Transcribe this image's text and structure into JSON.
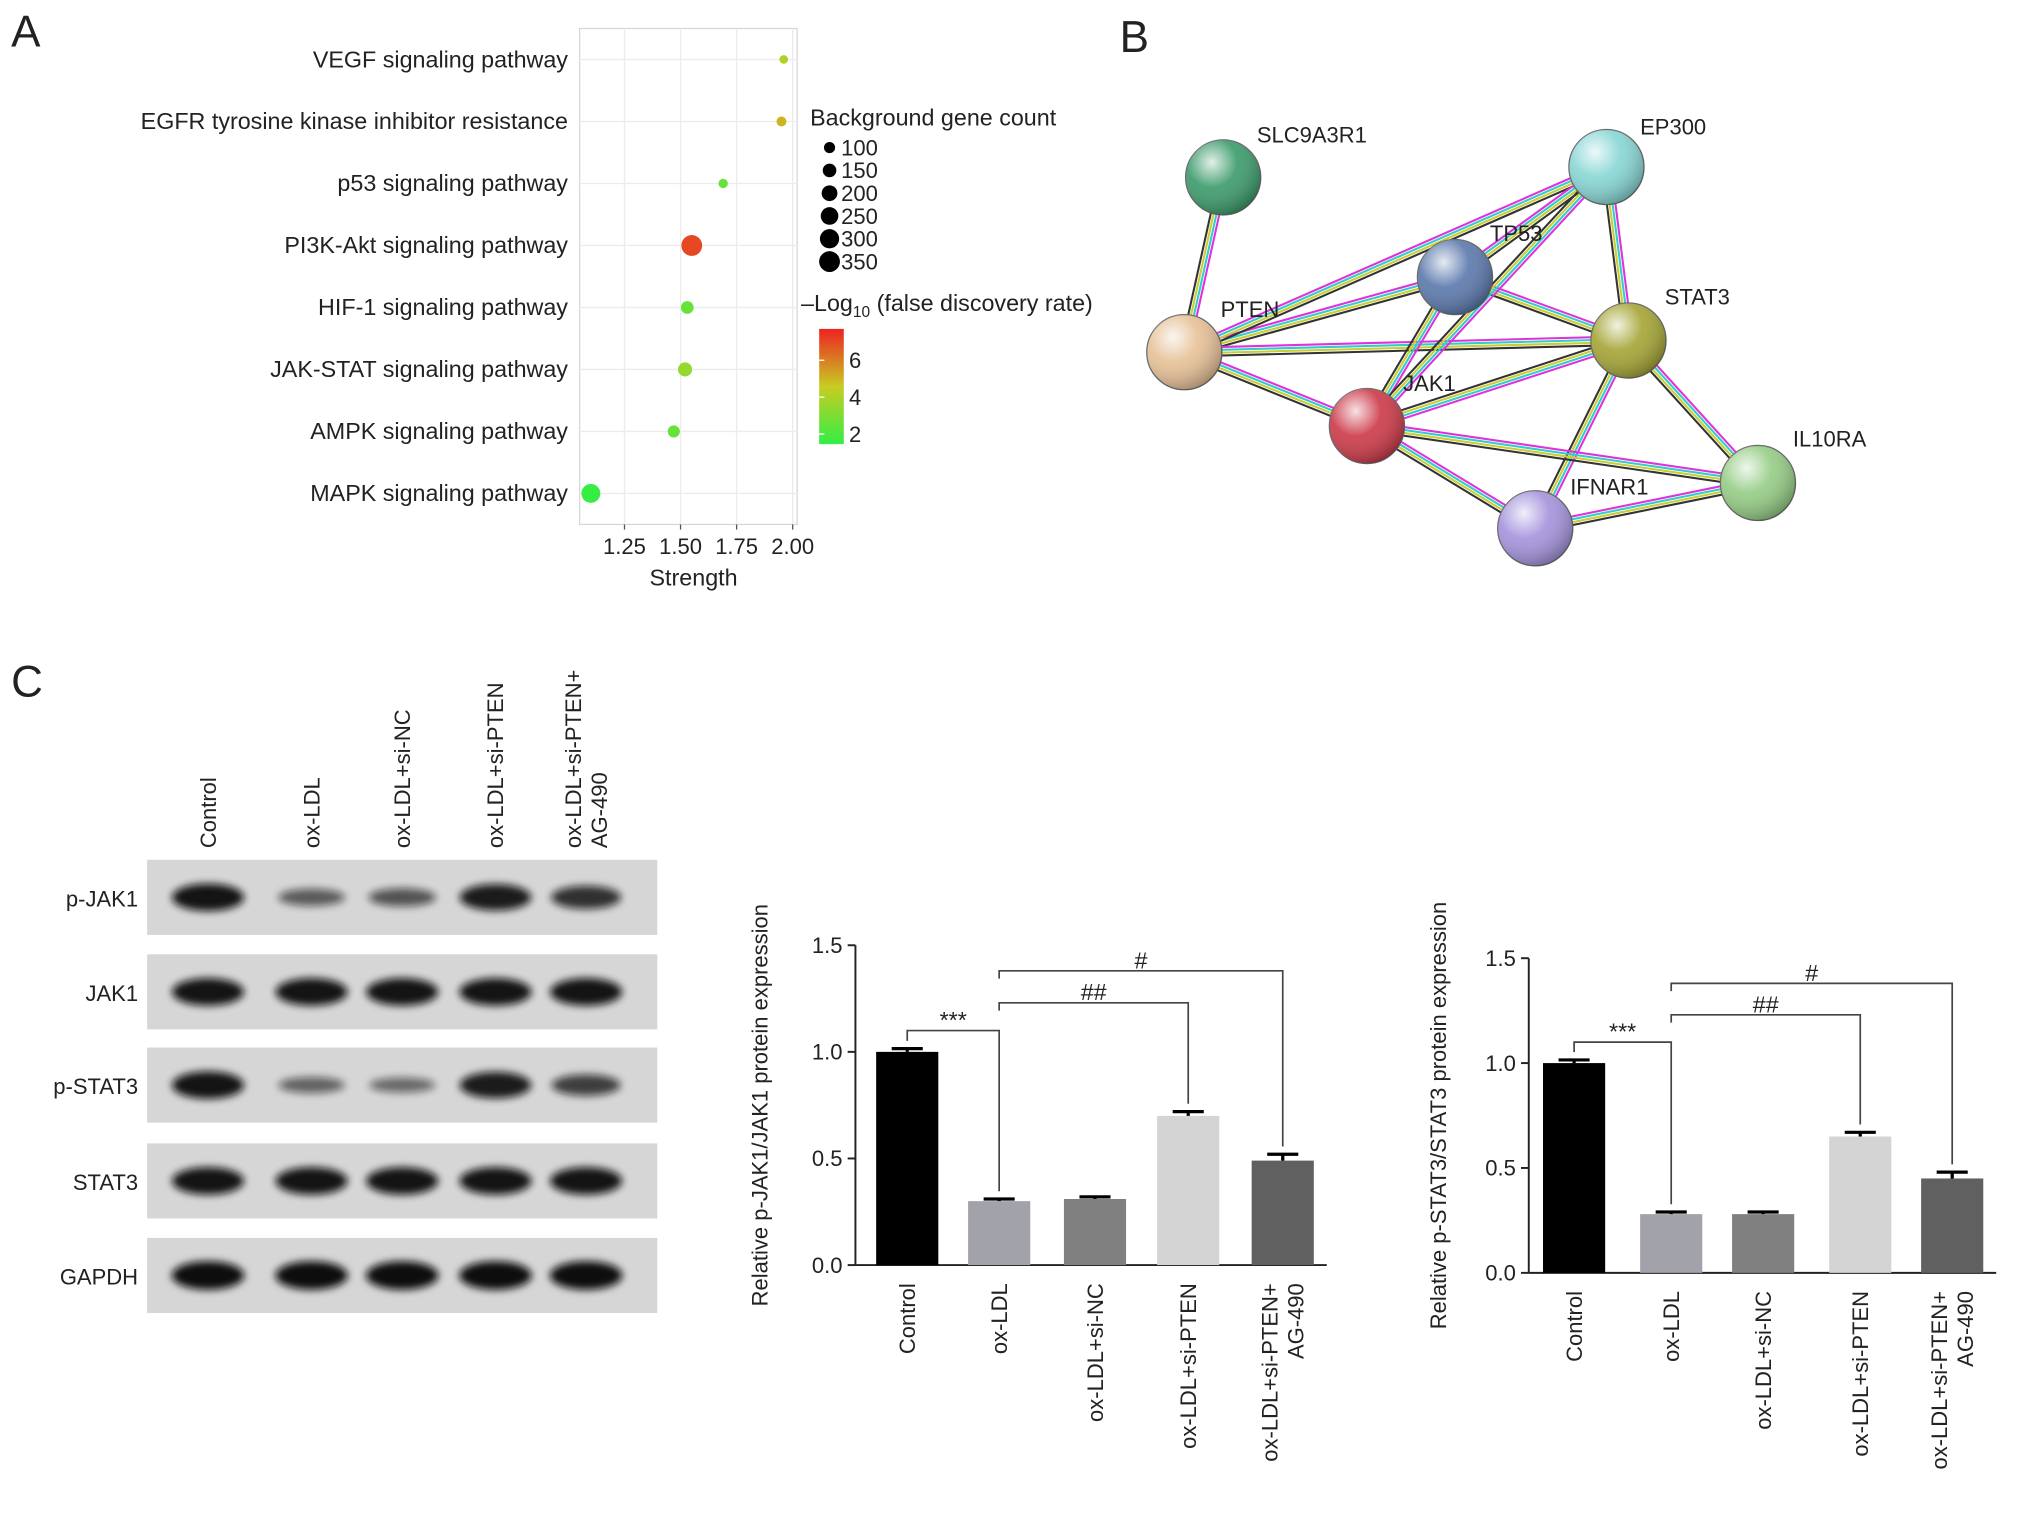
{
  "panel_labels": [
    "A",
    "B",
    "C"
  ],
  "chart_data": [
    {
      "type": "dot",
      "categories": [
        "VEGF signaling pathway",
        "EGFR tyrosine kinase inhibitor resistance",
        "p53 signaling pathway",
        "PI3K-Akt signaling pathway",
        "HIF-1 signaling pathway",
        "JAK-STAT signaling pathway",
        "AMPK signaling pathway",
        "MAPK signaling pathway"
      ],
      "values": [
        1.96,
        1.95,
        1.69,
        1.55,
        1.53,
        1.52,
        1.47,
        1.1
      ],
      "sizes": [
        60,
        80,
        70,
        350,
        130,
        160,
        120,
        290
      ],
      "color_values": [
        4,
        5,
        2.5,
        7,
        2.5,
        3.5,
        2.5,
        1.5
      ],
      "xlim": [
        1.05,
        2.02
      ],
      "xticks": [
        1.25,
        {
          "value": 1.5,
          "label": "1.50"
        },
        1.75,
        {
          "value": 2,
          "label": "2.00"
        }
      ],
      "xlabel": "Strength",
      "size_legend_title": "Background gene count",
      "size_ticks": [
        100,
        150,
        200,
        250,
        300,
        350
      ],
      "color_legend_title": [
        "–Log",
        "10",
        " (false discovery rate)"
      ],
      "clim": [
        1.45,
        7.7
      ],
      "color_ticks": [
        2,
        4,
        6
      ],
      "colormap": [
        "#33ee44",
        "#c8cc22",
        "#ee2222"
      ],
      "grid": true
    },
    {
      "type": "bar",
      "ylabel": "Relative p-JAK1/JAK1 protein expression",
      "categories": [
        "Control",
        "ox-LDL",
        "ox-LDL+si-NC",
        "ox-LDL+si-PTEN",
        "ox-LDL+si-PTEN+ AG-490"
      ],
      "values": [
        1.0,
        0.3,
        0.31,
        0.7,
        0.49
      ],
      "errors": [
        0.015,
        0.01,
        0.01,
        0.02,
        0.03
      ],
      "colors": [
        "#000000",
        "#a2a2aa",
        "#808080",
        "#d4d4d4",
        "#606060"
      ],
      "ylim": [
        0,
        1.5
      ],
      "yticks": [
        {
          "value": 0,
          "label": "0.0"
        },
        0.5,
        {
          "value": 1,
          "label": "1.0"
        },
        1.5
      ],
      "annotations": [
        "***",
        "##",
        "#"
      ]
    },
    {
      "type": "bar",
      "ylabel": "Relative p-STAT3/STAT3 protein expression",
      "categories": [
        "Control",
        "ox-LDL",
        "ox-LDL+si-NC",
        "ox-LDL+si-PTEN",
        "ox-LDL+si-PTEN+ AG-490"
      ],
      "values": [
        1.0,
        0.28,
        0.28,
        0.65,
        0.45
      ],
      "errors": [
        0.015,
        0.01,
        0.01,
        0.02,
        0.03
      ],
      "colors": [
        "#000000",
        "#a2a2aa",
        "#808080",
        "#d4d4d4",
        "#606060"
      ],
      "ylim": [
        0,
        1.5
      ],
      "yticks": [
        {
          "value": 0,
          "label": "0.0"
        },
        0.5,
        {
          "value": 1,
          "label": "1.0"
        },
        1.5
      ],
      "annotations": [
        "***",
        "##",
        "#"
      ]
    }
  ],
  "network": {
    "nodes": [
      {
        "label": "SLC9A3R1"
      },
      {
        "label": "EP300"
      },
      {
        "label": "TP53"
      },
      {
        "label": "PTEN"
      },
      {
        "label": "STAT3"
      },
      {
        "label": "JAK1"
      },
      {
        "label": "IFNAR1"
      },
      {
        "label": "IL10RA"
      }
    ]
  },
  "blot": {
    "lanes": [
      "Control",
      "ox-LDL",
      "ox-LDL+si-NC",
      "ox-LDL+si-PTEN",
      "ox-LDL+si-PTEN+ AG-490"
    ],
    "rows": [
      "p-JAK1",
      "JAK1",
      "p-STAT3",
      "STAT3",
      "GAPDH"
    ]
  }
}
